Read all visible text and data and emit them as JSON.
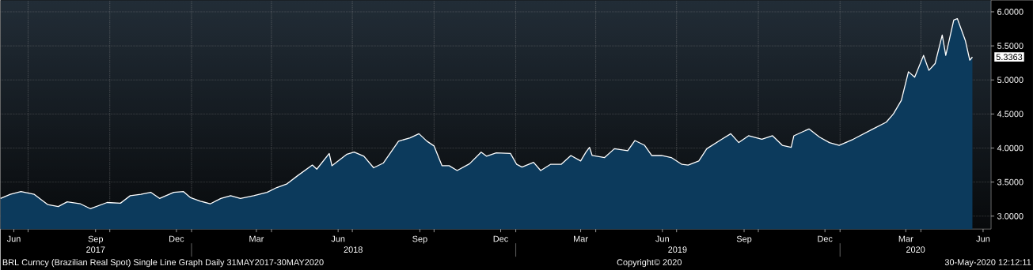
{
  "chart_data": {
    "type": "area",
    "x": [
      "2017-05-31",
      "2017-06-11",
      "2017-06-23",
      "2017-07-08",
      "2017-07-23",
      "2017-08-04",
      "2017-08-14",
      "2017-08-29",
      "2017-09-09",
      "2017-09-28",
      "2017-10-13",
      "2017-10-24",
      "2017-11-05",
      "2017-11-16",
      "2017-11-26",
      "2017-12-12",
      "2017-12-23",
      "2017-12-31",
      "2018-01-11",
      "2018-01-22",
      "2018-02-03",
      "2018-02-14",
      "2018-02-25",
      "2018-03-12",
      "2018-03-27",
      "2018-04-07",
      "2018-04-18",
      "2018-04-30",
      "2018-05-17",
      "2018-05-22",
      "2018-06-05",
      "2018-06-08",
      "2018-06-25",
      "2018-07-03",
      "2018-07-14",
      "2018-07-25",
      "2018-08-05",
      "2018-08-22",
      "2018-09-04",
      "2018-09-14",
      "2018-09-23",
      "2018-10-01",
      "2018-10-10",
      "2018-10-18",
      "2018-10-27",
      "2018-11-10",
      "2018-11-23",
      "2018-11-29",
      "2018-12-10",
      "2018-12-26",
      "2019-01-02",
      "2019-01-08",
      "2019-01-21",
      "2019-01-29",
      "2019-02-09",
      "2019-02-21",
      "2019-03-04",
      "2019-03-15",
      "2019-03-21",
      "2019-03-25",
      "2019-03-28",
      "2019-04-11",
      "2019-04-22",
      "2019-05-07",
      "2019-05-15",
      "2019-05-26",
      "2019-06-03",
      "2019-06-14",
      "2019-06-25",
      "2019-07-07",
      "2019-07-14",
      "2019-07-26",
      "2019-08-04",
      "2019-08-21",
      "2019-08-31",
      "2019-09-09",
      "2019-09-20",
      "2019-10-05",
      "2019-10-17",
      "2019-10-28",
      "2019-11-07",
      "2019-11-10",
      "2019-11-27",
      "2019-12-09",
      "2019-12-20",
      "2019-12-31",
      "2020-01-16",
      "2020-02-07",
      "2020-02-22",
      "2020-03-01",
      "2020-03-10",
      "2020-03-18",
      "2020-03-25",
      "2020-04-04",
      "2020-04-10",
      "2020-04-17",
      "2020-04-25",
      "2020-04-29",
      "2020-05-08",
      "2020-05-12",
      "2020-05-21",
      "2020-05-26",
      "2020-05-29"
    ],
    "series": [
      {
        "color": "#0c3a5c",
        "values": [
          3.26,
          3.32,
          3.36,
          3.32,
          3.17,
          3.14,
          3.21,
          3.18,
          3.11,
          3.2,
          3.19,
          3.3,
          3.32,
          3.35,
          3.26,
          3.35,
          3.36,
          3.27,
          3.22,
          3.18,
          3.26,
          3.3,
          3.26,
          3.3,
          3.35,
          3.42,
          3.47,
          3.59,
          3.75,
          3.69,
          3.92,
          3.74,
          3.91,
          3.94,
          3.88,
          3.71,
          3.78,
          4.1,
          4.15,
          4.21,
          4.1,
          4.03,
          3.74,
          3.74,
          3.67,
          3.77,
          3.94,
          3.88,
          3.93,
          3.92,
          3.76,
          3.72,
          3.79,
          3.67,
          3.76,
          3.76,
          3.89,
          3.81,
          3.94,
          4.01,
          3.89,
          3.86,
          3.99,
          3.96,
          4.11,
          4.04,
          3.89,
          3.89,
          3.86,
          3.76,
          3.75,
          3.81,
          3.99,
          4.13,
          4.21,
          4.08,
          4.18,
          4.13,
          4.18,
          4.04,
          4.01,
          4.18,
          4.28,
          4.16,
          4.08,
          4.04,
          4.13,
          4.28,
          4.38,
          4.5,
          4.7,
          5.12,
          5.04,
          5.36,
          5.14,
          5.24,
          5.66,
          5.36,
          5.88,
          5.9,
          5.58,
          5.29,
          5.3363
        ]
      }
    ],
    "xlim": [
      "2017-05-31",
      "2020-06-19"
    ],
    "xticks": [
      {
        "value": "2017-06-15",
        "label": "Jun"
      },
      {
        "value": "2017-07-01",
        "label": null
      },
      {
        "value": "2017-09-15",
        "label": "Sep"
      },
      {
        "value": "2017-10-01",
        "label": null
      },
      {
        "value": "2017-12-15",
        "label": "Dec"
      },
      {
        "value": "2018-01-01",
        "label": null
      },
      {
        "value": "2018-03-15",
        "label": "Mar"
      },
      {
        "value": "2018-04-01",
        "label": null
      },
      {
        "value": "2018-06-15",
        "label": "Jun"
      },
      {
        "value": "2018-07-01",
        "label": null
      },
      {
        "value": "2018-09-15",
        "label": "Sep"
      },
      {
        "value": "2018-10-01",
        "label": null
      },
      {
        "value": "2018-12-15",
        "label": "Dec"
      },
      {
        "value": "2019-01-01",
        "label": null
      },
      {
        "value": "2019-03-15",
        "label": "Mar"
      },
      {
        "value": "2019-04-01",
        "label": null
      },
      {
        "value": "2019-06-15",
        "label": "Jun"
      },
      {
        "value": "2019-07-01",
        "label": null
      },
      {
        "value": "2019-09-15",
        "label": "Sep"
      },
      {
        "value": "2019-10-01",
        "label": null
      },
      {
        "value": "2019-12-15",
        "label": "Dec"
      },
      {
        "value": "2020-01-01",
        "label": null
      },
      {
        "value": "2020-03-15",
        "label": "Mar"
      },
      {
        "value": "2020-04-01",
        "label": null
      },
      {
        "value": "2020-06-10",
        "label": "Jun"
      }
    ],
    "ylim": [
      2.81,
      6.17
    ],
    "yticks": [
      {
        "value": 3,
        "label": "3.0000"
      },
      {
        "value": 3.5,
        "label": "3.5000"
      },
      {
        "value": 4,
        "label": "4.0000"
      },
      {
        "value": 4.5,
        "label": "4.5000"
      },
      {
        "value": 5,
        "label": "5.0000"
      },
      {
        "value": 5.5,
        "label": "5.5000"
      },
      {
        "value": 6,
        "label": "6.0000"
      }
    ],
    "grid": true,
    "annotations": [
      {
        "text": "5.3363",
        "x": "2020-05-29",
        "y": 5.3363
      },
      "2017",
      "2018",
      "2019",
      "2020",
      "BRL Curncy (Brazilian Real Spot) Single Line Graph  Daily 31MAY2017-30MAY2020",
      "Copyright© 2020",
      "30-May-2020 12:12:11"
    ]
  }
}
